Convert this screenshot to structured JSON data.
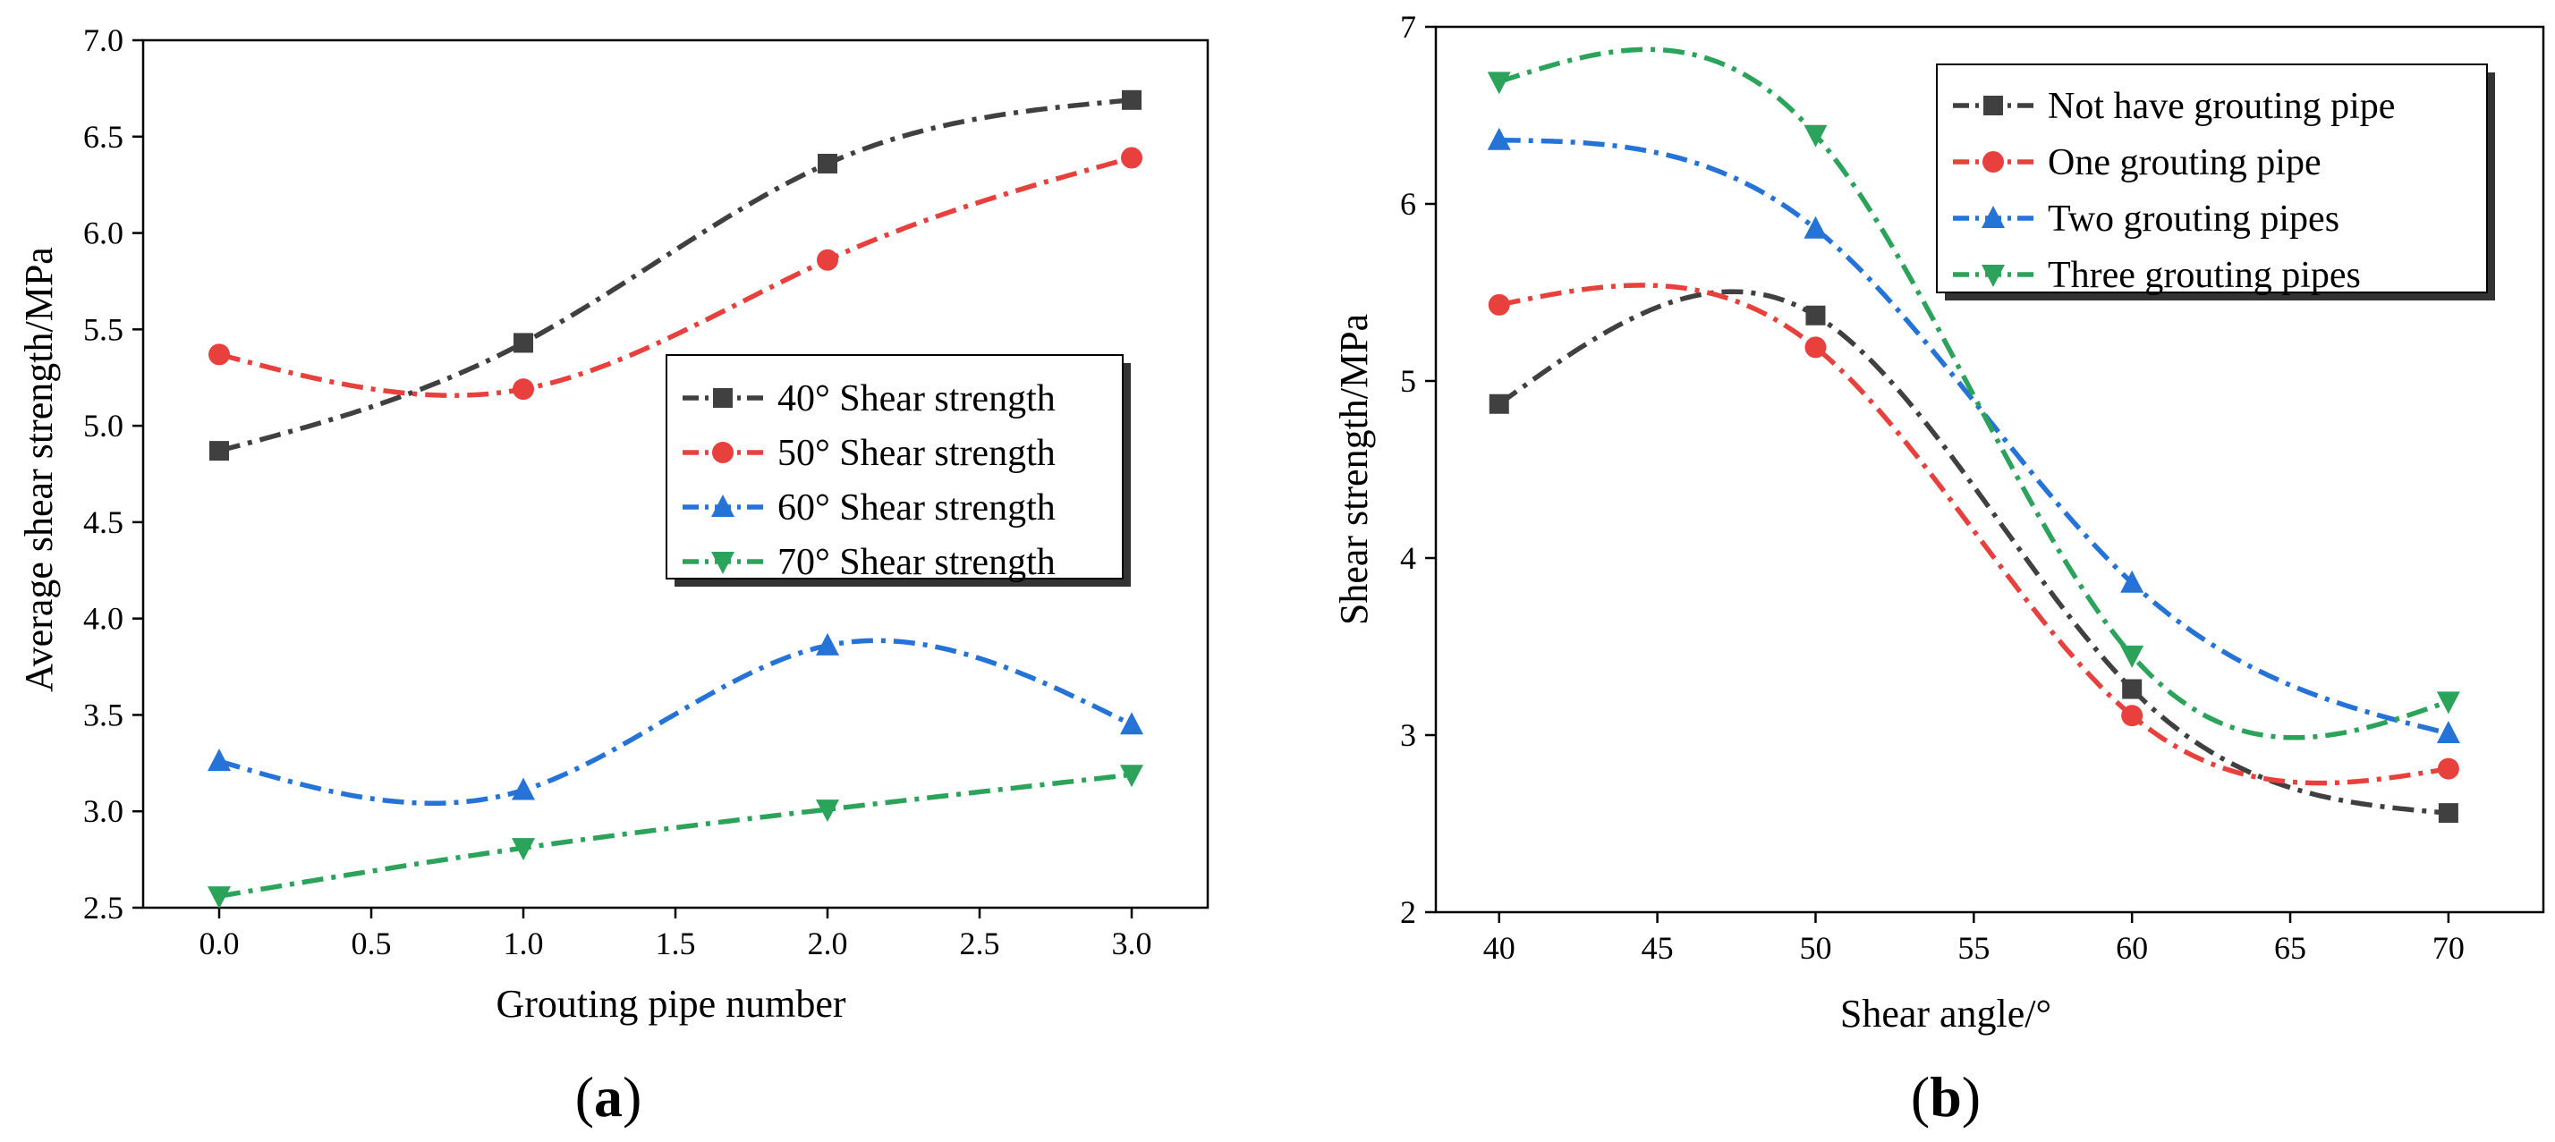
{
  "chart_data": [
    {
      "type": "line",
      "panel_label": "a",
      "xlabel": "Grouting pipe number",
      "ylabel": "Average shear strength/MPa",
      "xlim": [
        -0.25,
        3.25
      ],
      "ylim": [
        2.5,
        7.0
      ],
      "x_ticks": [
        "0.0",
        "0.5",
        "1.0",
        "1.5",
        "2.0",
        "2.5",
        "3.0"
      ],
      "y_ticks": [
        "2.5",
        "3.0",
        "3.5",
        "4.0",
        "4.5",
        "5.0",
        "5.5",
        "6.0",
        "6.5",
        "7.0"
      ],
      "x": [
        0,
        1,
        2,
        3
      ],
      "legend_position": "middle-right",
      "grid": false,
      "series": [
        {
          "name": "40° Shear strength",
          "values": [
            4.87,
            5.43,
            6.36,
            6.69
          ],
          "color": "#404040",
          "marker": "square"
        },
        {
          "name": "50° Shear strength",
          "values": [
            5.37,
            5.19,
            5.86,
            6.39
          ],
          "color": "#e8403c",
          "marker": "circle"
        },
        {
          "name": "60° Shear strength",
          "values": [
            3.26,
            3.11,
            3.86,
            3.45
          ],
          "color": "#2673d8",
          "marker": "triangle-up"
        },
        {
          "name": "70° Shear strength",
          "values": [
            2.56,
            2.81,
            3.01,
            3.19
          ],
          "color": "#2ca35a",
          "marker": "triangle-down"
        }
      ]
    },
    {
      "type": "line",
      "panel_label": "b",
      "xlabel": "Shear angle/°",
      "ylabel": "Shear strength/MPa",
      "xlim": [
        38,
        73
      ],
      "ylim": [
        2,
        7
      ],
      "x_ticks": [
        "40",
        "45",
        "50",
        "55",
        "60",
        "65",
        "70"
      ],
      "y_ticks": [
        "2",
        "3",
        "4",
        "5",
        "6",
        "7"
      ],
      "x": [
        40,
        50,
        60,
        70
      ],
      "legend_position": "top-right",
      "grid": false,
      "series": [
        {
          "name": "Not have grouting pipe",
          "values": [
            4.87,
            5.37,
            3.26,
            2.56
          ],
          "color": "#404040",
          "marker": "square"
        },
        {
          "name": "One grouting pipe",
          "values": [
            5.43,
            5.19,
            3.11,
            2.81
          ],
          "color": "#e8403c",
          "marker": "circle"
        },
        {
          "name": "Two grouting pipes",
          "values": [
            6.36,
            5.86,
            3.86,
            3.01
          ],
          "color": "#2673d8",
          "marker": "triangle-up"
        },
        {
          "name": "Three grouting pipes",
          "values": [
            6.69,
            6.39,
            3.45,
            3.19
          ],
          "color": "#2ca35a",
          "marker": "triangle-down"
        }
      ]
    }
  ]
}
